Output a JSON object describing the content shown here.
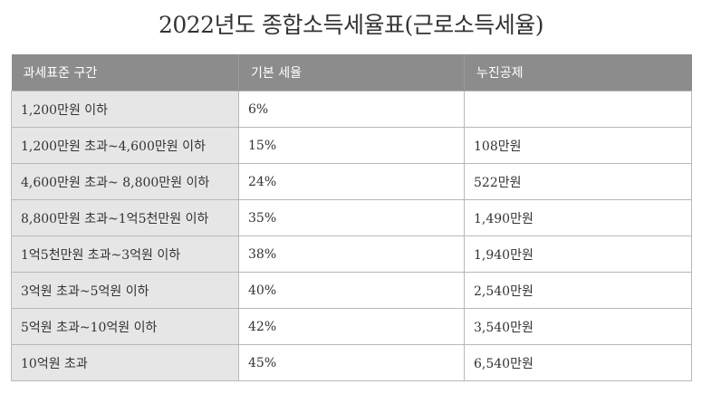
{
  "title": "2022년도 종합소득세율표(근로소득세율)",
  "table": {
    "headers": [
      "과세표준 구간",
      "기본 세율",
      "누진공제"
    ],
    "rows": [
      {
        "range": "1,200만원 이하",
        "rate": "6%",
        "deduction": ""
      },
      {
        "range": "1,200만원 초과~4,600만원 이하",
        "rate": "15%",
        "deduction": "108만원"
      },
      {
        "range": "4,600만원 초과~ 8,800만원 이하",
        "rate": "24%",
        "deduction": "522만원"
      },
      {
        "range": "8,800만원 초과~1억5천만원 이하",
        "rate": "35%",
        "deduction": "1,490만원"
      },
      {
        "range": "1억5천만원 초과~3억원 이하",
        "rate": "38%",
        "deduction": "1,940만원"
      },
      {
        "range": "3억원 초과~5억원 이하",
        "rate": "40%",
        "deduction": "2,540만원"
      },
      {
        "range": "5억원 초과~10억원 이하",
        "rate": "42%",
        "deduction": "3,540만원"
      },
      {
        "range": "10억원 초과",
        "rate": "45%",
        "deduction": "6,540만원"
      }
    ]
  }
}
